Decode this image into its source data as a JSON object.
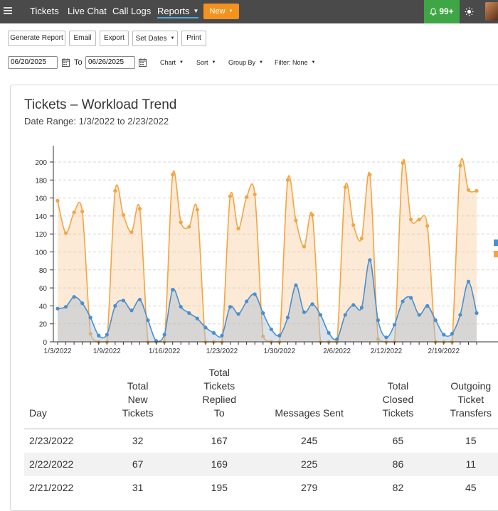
{
  "nav": {
    "items": [
      "Tickets",
      "Live Chat",
      "Call Logs"
    ],
    "reports": "Reports",
    "new_button": "New",
    "notifications": "99+"
  },
  "toolbar": {
    "generate": "Generate Report",
    "email": "Email",
    "export": "Export",
    "set_dates": "Set Dates",
    "print": "Print"
  },
  "filters": {
    "from_date": "06/20/2025",
    "to_label": "To",
    "to_date": "06/26/2025",
    "chart": "Chart",
    "sort": "Sort",
    "group_by": "Group By",
    "filter": "Filter: None"
  },
  "chart_data": {
    "type": "area",
    "title": "Tickets – Workload Trend",
    "subtitle": "Date Range: 1/3/2022 to 2/23/2022",
    "ylim": [
      0,
      200
    ],
    "yticks": [
      0,
      20,
      40,
      60,
      80,
      100,
      120,
      140,
      160,
      180,
      200
    ],
    "xtick_labels": [
      "1/3/2022",
      "1/9/2022",
      "1/16/2022",
      "1/23/2022",
      "1/30/2022",
      "2/6/2022",
      "2/12/2022",
      "2/19/2022"
    ],
    "xtick_index": [
      0,
      6,
      13,
      20,
      27,
      34,
      40,
      47
    ],
    "grid": true,
    "series": [
      {
        "color": "#f5a442",
        "values": [
          157,
          121,
          144,
          145,
          9,
          0,
          0,
          168,
          141,
          122,
          148,
          0,
          0,
          0,
          186,
          133,
          128,
          147,
          0,
          0,
          0,
          162,
          126,
          161,
          164,
          6,
          0,
          0,
          180,
          135,
          106,
          141,
          0,
          0,
          0,
          172,
          130,
          115,
          186,
          3,
          0,
          0,
          199,
          136,
          136,
          129,
          0,
          0,
          0,
          196,
          169,
          168
        ]
      },
      {
        "color": "#4a8fcf",
        "values": [
          37,
          39,
          50,
          43,
          27,
          7,
          8,
          40,
          46,
          35,
          47,
          24,
          1,
          8,
          58,
          39,
          32,
          26,
          16,
          10,
          7,
          39,
          31,
          45,
          53,
          32,
          14,
          7,
          27,
          63,
          33,
          42,
          30,
          10,
          3,
          30,
          41,
          38,
          91,
          24,
          5,
          19,
          45,
          49,
          30,
          40,
          24,
          8,
          9,
          30,
          67,
          32
        ]
      }
    ]
  },
  "table": {
    "headers": [
      "Day",
      "Total\nNew\nTickets",
      "Total\nTickets\nReplied\nTo",
      "Messages Sent",
      "Total\nClosed\nTickets",
      "Outgoing\nTicket\nTransfers"
    ],
    "rows": [
      [
        "2/23/2022",
        "32",
        "167",
        "245",
        "65",
        "15"
      ],
      [
        "2/22/2022",
        "67",
        "169",
        "225",
        "86",
        "11"
      ],
      [
        "2/21/2022",
        "31",
        "195",
        "279",
        "82",
        "45"
      ]
    ]
  }
}
